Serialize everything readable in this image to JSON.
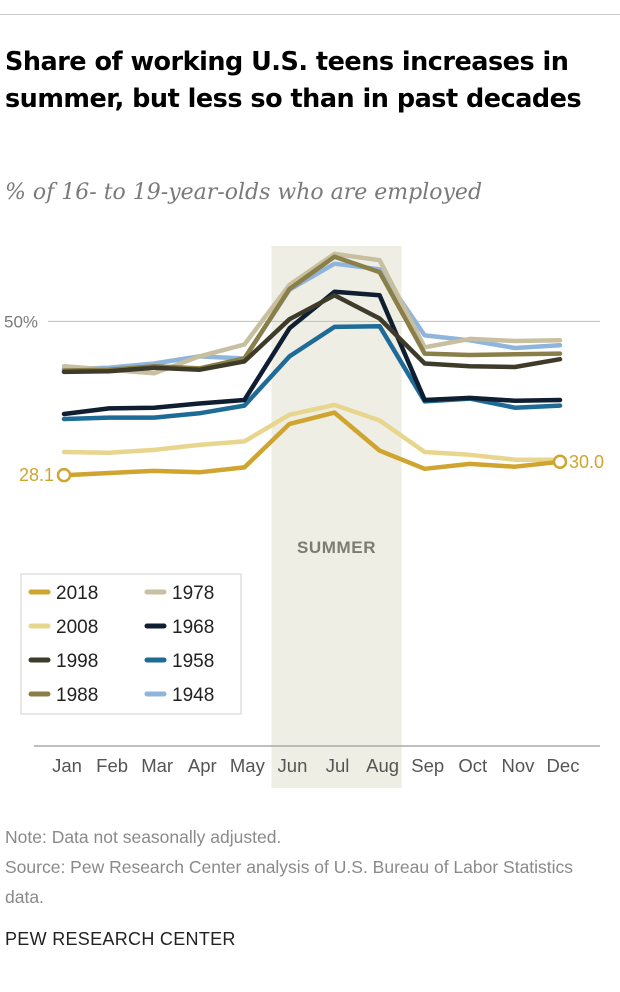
{
  "title": "Share of working U.S. teens increases in summer, but less so than in past decades",
  "subtitle": "% of 16- to 19-year-olds who are employed",
  "notes": {
    "note": "Note: Data not seasonally adjusted.",
    "source": "Source: Pew Research Center analysis of U.S. Bureau of Labor Statistics data."
  },
  "brand": "PEW RESEARCH CENTER",
  "chart_data": {
    "type": "line",
    "title": "",
    "xlabel": "",
    "ylabel": "",
    "categories": [
      "Jan",
      "Feb",
      "Mar",
      "Apr",
      "May",
      "Jun",
      "Jul",
      "Aug",
      "Sep",
      "Oct",
      "Nov",
      "Dec"
    ],
    "ylim": [
      22,
      63
    ],
    "yticks": [
      {
        "value": 50,
        "label": "50%"
      }
    ],
    "shaded_band": {
      "from": "Jun",
      "to": "Aug",
      "label": "SUMMER",
      "color": "#efeee4"
    },
    "annotations": [
      {
        "series": "2018",
        "month": "Jan",
        "label": "28.1"
      },
      {
        "series": "2018",
        "month": "Dec",
        "label": "30.0"
      }
    ],
    "series": [
      {
        "name": "1948",
        "color": "#8fb5dd",
        "values": [
          43.2,
          43.4,
          44.0,
          45.0,
          44.7,
          54.5,
          58.2,
          57.4,
          48.0,
          47.3,
          46.2,
          46.6
        ]
      },
      {
        "name": "1958",
        "color": "#1f6b97",
        "values": [
          36.1,
          36.3,
          36.3,
          36.9,
          38.0,
          45.0,
          49.2,
          49.3,
          38.6,
          39.0,
          37.7,
          38.0
        ]
      },
      {
        "name": "1968",
        "color": "#0f1e30",
        "values": [
          36.8,
          37.6,
          37.7,
          38.3,
          38.8,
          49.0,
          54.2,
          53.7,
          38.8,
          39.1,
          38.7,
          38.8
        ]
      },
      {
        "name": "1978",
        "color": "#c8bea0",
        "values": [
          43.6,
          43.1,
          42.6,
          45.0,
          46.7,
          55.2,
          59.6,
          58.7,
          46.3,
          47.5,
          47.2,
          47.3
        ]
      },
      {
        "name": "1988",
        "color": "#8b7f49",
        "values": [
          43.0,
          43.1,
          43.6,
          43.3,
          44.7,
          54.6,
          59.2,
          57.0,
          45.4,
          45.2,
          45.3,
          45.4
        ]
      },
      {
        "name": "1998",
        "color": "#3f3b2a",
        "values": [
          42.8,
          42.9,
          43.4,
          43.1,
          44.3,
          50.3,
          53.7,
          50.4,
          44.0,
          43.6,
          43.5,
          44.6
        ]
      },
      {
        "name": "2008",
        "color": "#e8d58e",
        "values": [
          31.4,
          31.3,
          31.7,
          32.4,
          32.9,
          36.7,
          38.1,
          35.9,
          31.4,
          31.0,
          30.3,
          30.3
        ]
      },
      {
        "name": "2018",
        "color": "#cfa530",
        "values": [
          28.1,
          28.4,
          28.7,
          28.5,
          29.2,
          35.4,
          37.0,
          31.6,
          29.0,
          29.7,
          29.3,
          30.0
        ]
      }
    ],
    "legend": {
      "placement": "bottom-left",
      "order": [
        "2018",
        "1978",
        "2008",
        "1968",
        "1998",
        "1958",
        "1988",
        "1948"
      ]
    }
  }
}
